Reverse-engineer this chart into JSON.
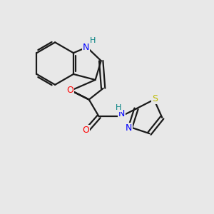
{
  "background_color": "#e8e8e8",
  "bond_color": "#1a1a1a",
  "atom_colors": {
    "O": "#ff0000",
    "N": "#0000ff",
    "S": "#bbbb00",
    "H": "#008080",
    "C": "#1a1a1a"
  },
  "figsize": [
    3.0,
    3.0
  ],
  "dpi": 100
}
